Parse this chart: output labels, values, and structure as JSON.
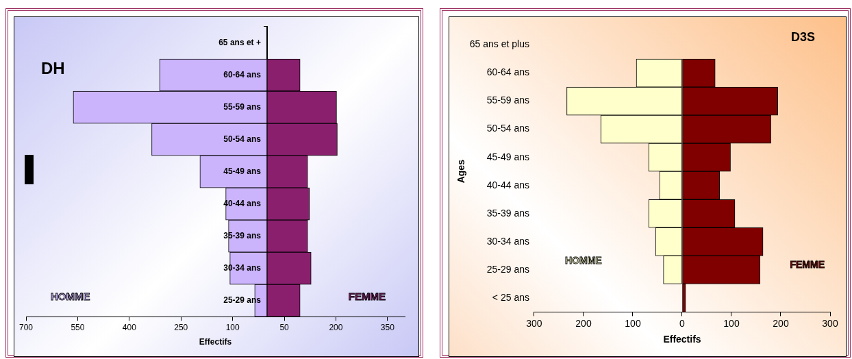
{
  "chart_data": [
    {
      "type": "bar",
      "orientation": "horizontal",
      "stacked": true,
      "title": "DH",
      "xlabel": "Effectifs",
      "categories": [
        "65 ans et +",
        "60-64 ans",
        "55-59 ans",
        "50-54 ans",
        "45-49 ans",
        "40-44 ans",
        "35-39 ans",
        "30-34 ans",
        "25-29 ans"
      ],
      "series": [
        {
          "name": "HOMME",
          "color": "#cbb4fb",
          "values": [
            0,
            -312,
            -563,
            -335,
            -195,
            -120,
            -112,
            -108,
            -36
          ]
        },
        {
          "name": "FEMME",
          "color": "#8a1f6e",
          "values": [
            0,
            96,
            202,
            204,
            118,
            123,
            118,
            128,
            96
          ]
        }
      ],
      "xlim": [
        -700,
        400
      ],
      "xticks": [
        {
          "value": -700,
          "label": "700"
        },
        {
          "value": -550,
          "label": "550"
        },
        {
          "value": -400,
          "label": "400"
        },
        {
          "value": -250,
          "label": "250"
        },
        {
          "value": -100,
          "label": "100"
        },
        {
          "value": 50,
          "label": "50"
        },
        {
          "value": 200,
          "label": "200"
        },
        {
          "value": 350,
          "label": "350"
        }
      ]
    },
    {
      "type": "bar",
      "orientation": "horizontal",
      "stacked": true,
      "title": "D3S",
      "xlabel": "Effectifs",
      "ylabel": "Ages",
      "categories": [
        "65 ans et plus",
        "60-64 ans",
        "55-59 ans",
        "50-54 ans",
        "45-49 ans",
        "40-44 ans",
        "35-39 ans",
        "30-34 ans",
        "25-29 ans",
        "< 25 ans"
      ],
      "series": [
        {
          "name": "HOMME",
          "color": "#ffffcc",
          "values": [
            0,
            -93,
            -234,
            -165,
            -68,
            -46,
            -68,
            -54,
            -38,
            0
          ]
        },
        {
          "name": "FEMME",
          "color": "#800000",
          "values": [
            0,
            67,
            194,
            180,
            98,
            76,
            107,
            164,
            158,
            7
          ]
        }
      ],
      "xlim": [
        -300,
        300
      ],
      "xticks": [
        {
          "value": -300,
          "label": "300"
        },
        {
          "value": -200,
          "label": "200"
        },
        {
          "value": -100,
          "label": "100"
        },
        0,
        {
          "value": 100,
          "label": "100"
        },
        {
          "value": 200,
          "label": "200"
        },
        {
          "value": 300,
          "label": "300"
        }
      ]
    }
  ]
}
